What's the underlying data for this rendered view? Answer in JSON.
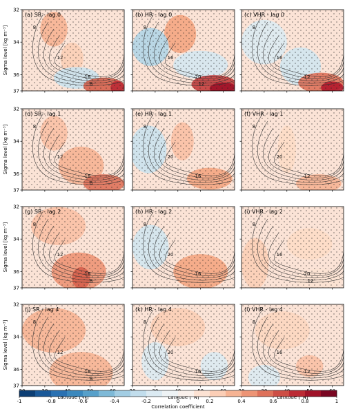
{
  "chart_data": {
    "type": "heatmap",
    "colorscale": {
      "colors": [
        "#053061",
        "#2166ac",
        "#4393c3",
        "#92c5de",
        "#d1e5f0",
        "#f7f7f7",
        "#fddbc7",
        "#f4a582",
        "#d6604d",
        "#b2182b",
        "#67001f"
      ],
      "vmin": -1,
      "vmax": 1,
      "ticks": [
        "-1",
        "-0.8",
        "-0.6",
        "-0.4",
        "-0.2",
        "0",
        "0.2",
        "0.4",
        "0.6",
        "0.8",
        "1"
      ],
      "label": "Correlation coefficient"
    },
    "xlabel": "Latitude [°N]",
    "ylabel": "Sigma level [kg m⁻³]",
    "x_ticks": [
      "20",
      "30",
      "40",
      "50",
      "60"
    ],
    "y_ticks": [
      "32",
      "34",
      "36",
      "37"
    ],
    "xlim": [
      20,
      65
    ],
    "ylim": [
      37,
      32
    ],
    "panels": [
      {
        "title": "(a) SR - lag 0",
        "contours": [
          "8",
          "12",
          "16",
          "8"
        ],
        "fields": [
          {
            "x": 34,
            "y": 33.2,
            "rx": 6,
            "ry": 0.9,
            "v": 0.35
          },
          {
            "x": 42,
            "y": 35.0,
            "rx": 5,
            "ry": 0.8,
            "v": 0.25
          },
          {
            "x": 44,
            "y": 36.2,
            "rx": 10,
            "ry": 0.5,
            "v": -0.22
          },
          {
            "x": 56,
            "y": 36.7,
            "rx": 9,
            "ry": 0.35,
            "v": 0.6
          },
          {
            "x": 62,
            "y": 36.8,
            "rx": 3,
            "ry": 0.25,
            "v": 0.75
          }
        ]
      },
      {
        "title": "(b) HR - lag 0",
        "contours": [
          "8",
          "16",
          "20",
          "12"
        ],
        "fields": [
          {
            "x": 41,
            "y": 33.5,
            "rx": 7,
            "ry": 1.0,
            "v": 0.4
          },
          {
            "x": 28,
            "y": 34.3,
            "rx": 8,
            "ry": 1.0,
            "v": -0.3
          },
          {
            "x": 50,
            "y": 35.4,
            "rx": 12,
            "ry": 0.7,
            "v": -0.18
          },
          {
            "x": 56,
            "y": 36.6,
            "rx": 10,
            "ry": 0.4,
            "v": 0.7
          },
          {
            "x": 60,
            "y": 36.85,
            "rx": 6,
            "ry": 0.2,
            "v": 0.85
          }
        ]
      },
      {
        "title": "(c) VHR - lag 0",
        "contours": [
          "8",
          "16",
          "12"
        ],
        "fields": [
          {
            "x": 30,
            "y": 34.0,
            "rx": 10,
            "ry": 1.2,
            "v": -0.15
          },
          {
            "x": 46,
            "y": 35.5,
            "rx": 9,
            "ry": 1.0,
            "v": -0.2
          },
          {
            "x": 55,
            "y": 36.5,
            "rx": 10,
            "ry": 0.45,
            "v": 0.55
          },
          {
            "x": 60,
            "y": 36.8,
            "rx": 5,
            "ry": 0.2,
            "v": 0.8
          }
        ]
      },
      {
        "title": "(d) SR - lag 1",
        "contours": [
          "8",
          "12",
          "16",
          "8"
        ],
        "fields": [
          {
            "x": 34,
            "y": 33.5,
            "rx": 6,
            "ry": 0.9,
            "v": 0.3
          },
          {
            "x": 46,
            "y": 35.5,
            "rx": 10,
            "ry": 1.0,
            "v": 0.35
          },
          {
            "x": 56,
            "y": 36.6,
            "rx": 9,
            "ry": 0.4,
            "v": 0.55
          }
        ]
      },
      {
        "title": "(e) HR - lag 1",
        "contours": [
          "8",
          "20",
          "16"
        ],
        "fields": [
          {
            "x": 27,
            "y": 34.5,
            "rx": 8,
            "ry": 1.3,
            "v": -0.22
          },
          {
            "x": 42,
            "y": 34.0,
            "rx": 5,
            "ry": 1.0,
            "v": 0.3
          },
          {
            "x": 54,
            "y": 36.3,
            "rx": 10,
            "ry": 0.5,
            "v": 0.4
          }
        ]
      },
      {
        "title": "(f) VHR - lag 1",
        "contours": [
          "8",
          "20",
          "12"
        ],
        "fields": [
          {
            "x": 40,
            "y": 34.5,
            "rx": 4,
            "ry": 1.3,
            "v": 0.2
          },
          {
            "x": 54,
            "y": 36.6,
            "rx": 10,
            "ry": 0.4,
            "v": 0.35
          }
        ]
      },
      {
        "title": "(g) SR - lag 2",
        "contours": [
          "8",
          "12",
          "16",
          "8"
        ],
        "fields": [
          {
            "x": 36,
            "y": 33.2,
            "rx": 12,
            "ry": 1.0,
            "v": 0.3
          },
          {
            "x": 45,
            "y": 36.0,
            "rx": 12,
            "ry": 1.0,
            "v": 0.45
          },
          {
            "x": 46,
            "y": 36.4,
            "rx": 4,
            "ry": 0.5,
            "v": 0.6
          }
        ]
      },
      {
        "title": "(h) HR - lag 2",
        "contours": [
          "8",
          "20",
          "16"
        ],
        "fields": [
          {
            "x": 28,
            "y": 34.5,
            "rx": 8,
            "ry": 1.2,
            "v": -0.2
          },
          {
            "x": 50,
            "y": 36.0,
            "rx": 12,
            "ry": 0.9,
            "v": 0.4
          }
        ]
      },
      {
        "title": "(i) VHR - lag 2",
        "contours": [
          "8",
          "16",
          "20",
          "12"
        ],
        "fields": [
          {
            "x": 26,
            "y": 35.5,
            "rx": 6,
            "ry": 1.4,
            "v": 0.25
          },
          {
            "x": 50,
            "y": 34.3,
            "rx": 10,
            "ry": 0.8,
            "v": 0.2
          },
          {
            "x": 54,
            "y": 36.5,
            "rx": 10,
            "ry": 0.5,
            "v": 0.15
          }
        ]
      },
      {
        "title": "(j) SR - lag 4",
        "contours": [
          "8",
          "12",
          "16",
          "8"
        ],
        "fields": [
          {
            "x": 34,
            "y": 33.6,
            "rx": 14,
            "ry": 1.2,
            "v": 0.35
          },
          {
            "x": 46,
            "y": 36.2,
            "rx": 14,
            "ry": 1.1,
            "v": 0.35
          }
        ]
      },
      {
        "title": "(k) HR - lag 4",
        "contours": [
          "8",
          "20",
          "16"
        ],
        "fields": [
          {
            "x": 40,
            "y": 33.4,
            "rx": 12,
            "ry": 1.0,
            "v": 0.25
          },
          {
            "x": 30,
            "y": 35.5,
            "rx": 6,
            "ry": 1.0,
            "v": -0.15
          },
          {
            "x": 56,
            "y": 35.8,
            "rx": 6,
            "ry": 0.7,
            "v": -0.15
          }
        ]
      },
      {
        "title": "(l) VHR - lag 4",
        "contours": [
          "8",
          "16",
          "12"
        ],
        "fields": [
          {
            "x": 38,
            "y": 33.6,
            "rx": 12,
            "ry": 1.0,
            "v": 0.22
          },
          {
            "x": 50,
            "y": 35.8,
            "rx": 6,
            "ry": 0.5,
            "v": 0.3
          },
          {
            "x": 30,
            "y": 36.5,
            "rx": 7,
            "ry": 0.6,
            "v": -0.15
          }
        ]
      }
    ]
  }
}
